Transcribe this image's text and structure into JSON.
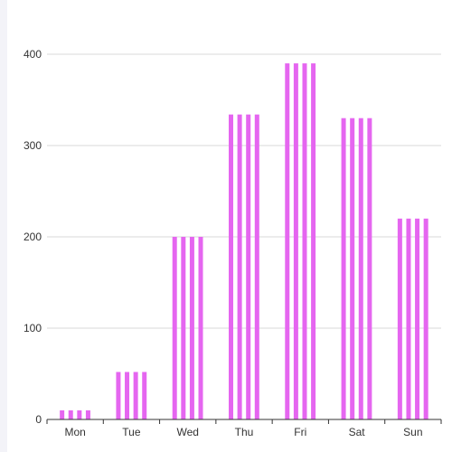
{
  "chart_data": {
    "type": "bar",
    "title": "",
    "xlabel": "",
    "ylabel": "",
    "categories": [
      "Mon",
      "Tue",
      "Wed",
      "Thu",
      "Fri",
      "Sat",
      "Sun"
    ],
    "values": [
      10,
      52,
      200,
      334,
      390,
      330,
      220
    ],
    "ylim": [
      0,
      400
    ],
    "yticks": [
      "0",
      "100",
      "200",
      "300",
      "400"
    ],
    "grid": true,
    "legend": "none",
    "bar_color": "#e566f0",
    "bar_pattern": "vertical-stripes"
  }
}
